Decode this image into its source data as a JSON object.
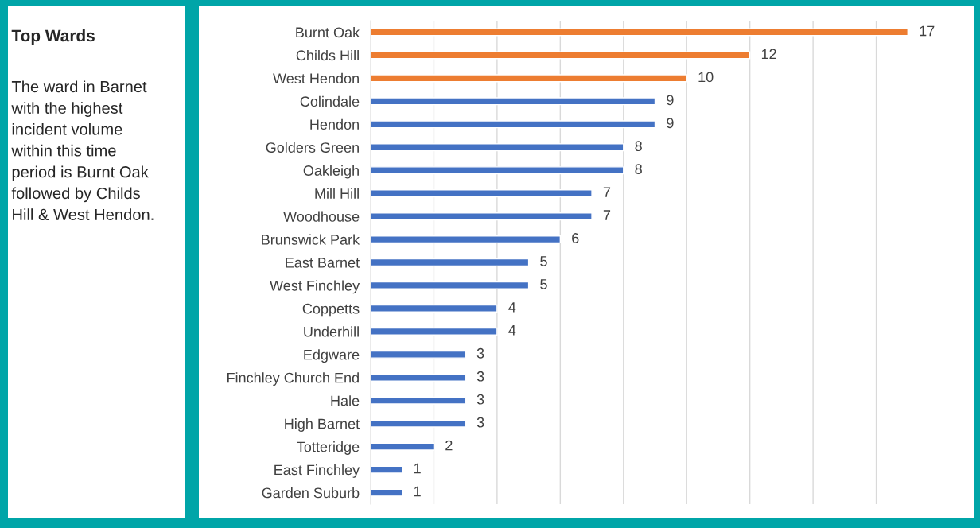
{
  "chart_data": [
    {
      "type": "other",
      "title": "Top Wards",
      "annotations": [
        "The ward in Barnet\nwith the highest\nincident volume\nwithin this time\nperiod is Burnt Oak\nfollowed by Childs\nHill & West Hendon."
      ]
    },
    {
      "type": "bar",
      "orientation": "horizontal",
      "categories": [
        "Burnt Oak",
        "Childs Hill",
        "West Hendon",
        "Colindale",
        "Hendon",
        "Golders Green",
        "Oakleigh",
        "Mill Hill",
        "Woodhouse",
        "Brunswick Park",
        "East Barnet",
        "West Finchley",
        "Coppetts",
        "Underhill",
        "Edgware",
        "Finchley Church End",
        "Hale",
        "High Barnet",
        "Totteridge",
        "East Finchley",
        "Garden Suburb"
      ],
      "values": [
        17,
        12,
        10,
        9,
        9,
        8,
        8,
        7,
        7,
        6,
        5,
        5,
        4,
        4,
        3,
        3,
        3,
        3,
        2,
        1,
        1
      ],
      "colors": [
        "#ed7d31",
        "#ed7d31",
        "#ed7d31",
        "#4472c4",
        "#4472c4",
        "#4472c4",
        "#4472c4",
        "#4472c4",
        "#4472c4",
        "#4472c4",
        "#4472c4",
        "#4472c4",
        "#4472c4",
        "#4472c4",
        "#4472c4",
        "#4472c4",
        "#4472c4",
        "#4472c4",
        "#4472c4",
        "#4472c4",
        "#4472c4"
      ],
      "xlim": [
        0,
        18
      ],
      "xticks": [
        {
          "value": 0,
          "label": null
        },
        {
          "value": 2,
          "label": null
        },
        {
          "value": 4,
          "label": null
        },
        {
          "value": 6,
          "label": null
        },
        {
          "value": 8,
          "label": null
        },
        {
          "value": 10,
          "label": null
        },
        {
          "value": 12,
          "label": null
        },
        {
          "value": 14,
          "label": null
        },
        {
          "value": 16,
          "label": null
        },
        {
          "value": 18,
          "label": null
        }
      ],
      "tick_labels": "y",
      "grid": "x",
      "data_labels": true,
      "legend": false
    }
  ]
}
